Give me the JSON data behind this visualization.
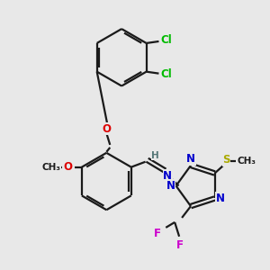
{
  "bg_color": "#e8e8e8",
  "bond_color": "#1a1a1a",
  "atom_colors": {
    "O": "#dd0000",
    "N": "#0000cc",
    "S": "#aaaa00",
    "F": "#cc00cc",
    "Cl": "#00bb00",
    "H": "#557777",
    "C": "#1a1a1a"
  },
  "figsize": [
    3.0,
    3.0
  ],
  "dpi": 100
}
